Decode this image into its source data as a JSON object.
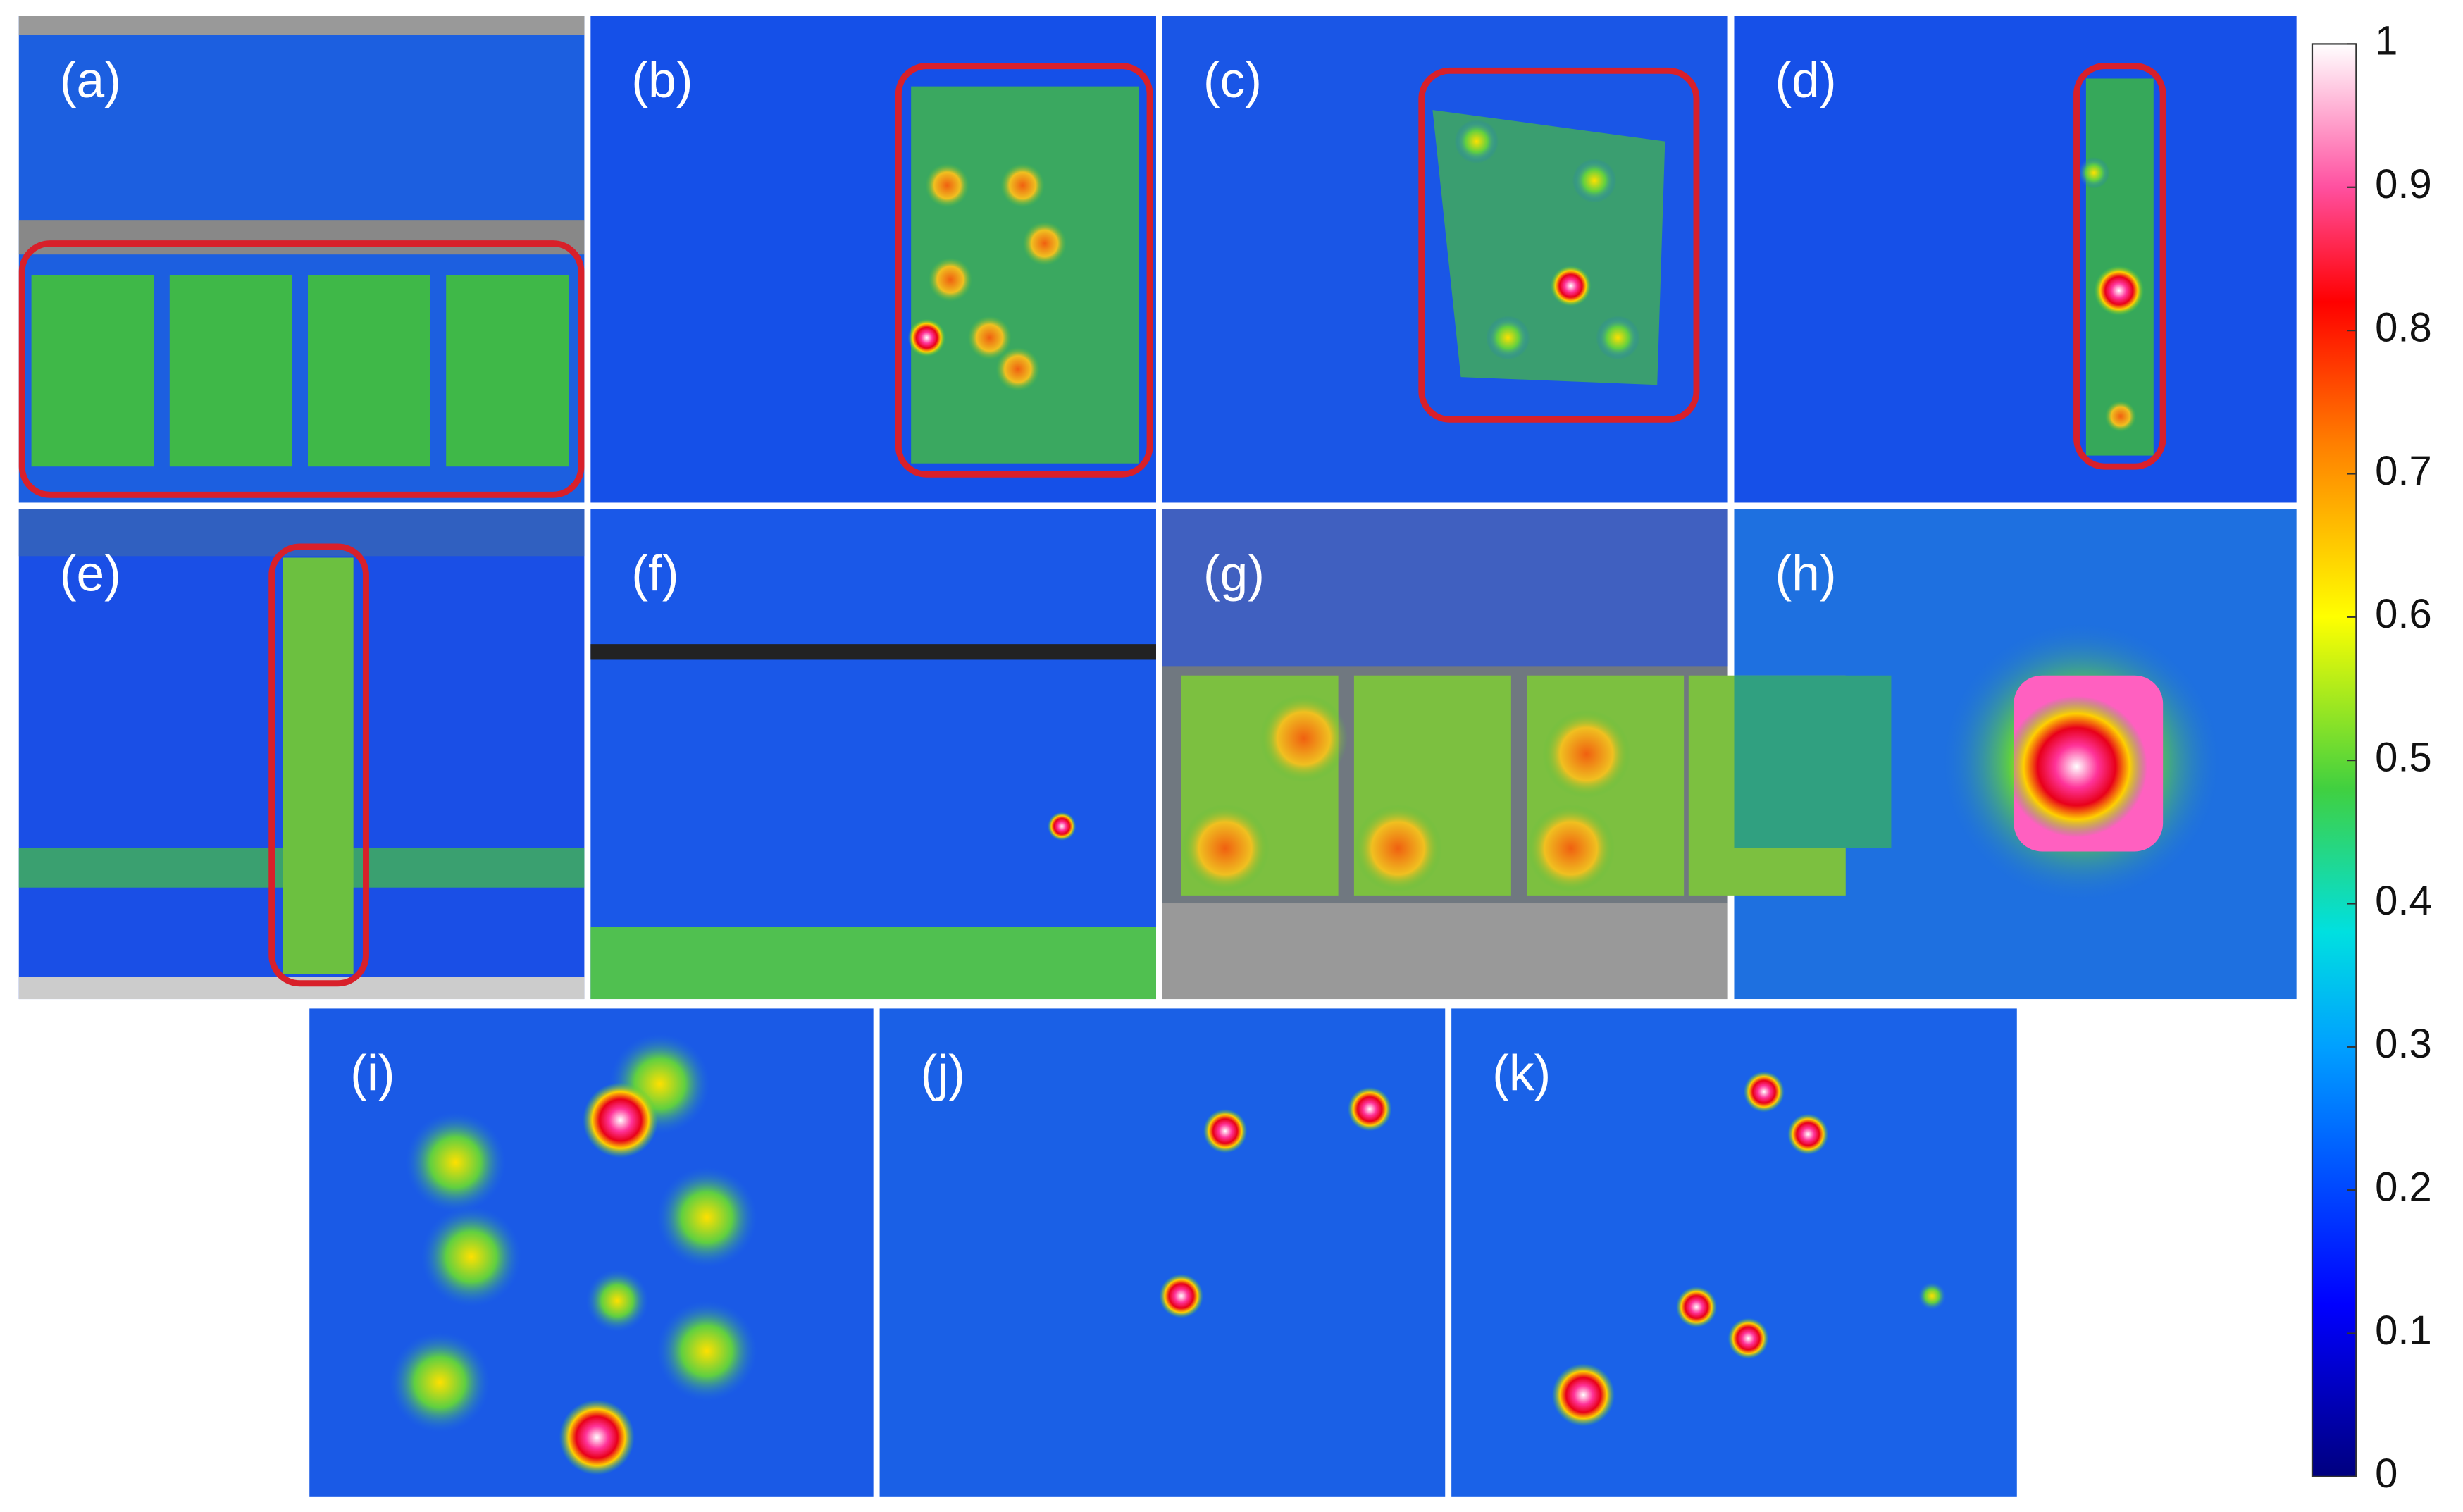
{
  "panels": [
    "(a)",
    "(b)",
    "(c)",
    "(d)",
    "(e)",
    "(f)",
    "(g)",
    "(h)",
    "(i)",
    "(j)",
    "(k)"
  ],
  "colorbar": {
    "ticks": [
      0,
      0.1,
      0.2,
      0.3,
      0.4,
      0.5,
      0.6,
      0.7,
      0.8,
      0.9,
      1
    ]
  }
}
